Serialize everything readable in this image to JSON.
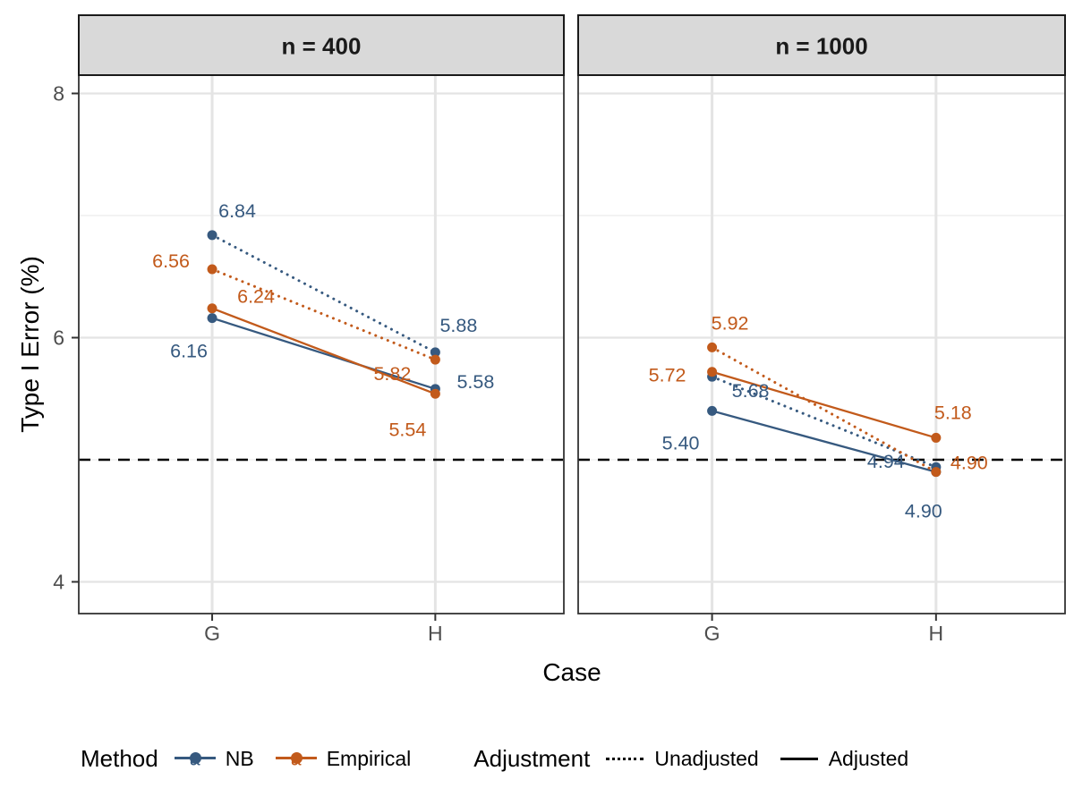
{
  "chart_data": {
    "type": "line",
    "title": "",
    "xlabel": "Case",
    "ylabel": "Type I Error (%)",
    "categories": [
      "G",
      "H"
    ],
    "yticks": [
      4,
      6,
      8
    ],
    "yminor_gridlines": [
      5,
      7
    ],
    "ylim": [
      3.74,
      8.15
    ],
    "reference_line_y": 5,
    "grid": true,
    "legend_position": "bottom",
    "facets": [
      {
        "title": "n = 400",
        "series": [
          {
            "method": "NB",
            "adjustment": "Unadjusted",
            "values": [
              6.84,
              5.88
            ],
            "label_offsets": [
              [
                28,
                -27
              ],
              [
                26,
                -30
              ]
            ]
          },
          {
            "method": "NB",
            "adjustment": "Adjusted",
            "values": [
              6.16,
              5.58
            ],
            "label_offsets": [
              [
                -26,
                37
              ],
              [
                45,
                -8
              ]
            ]
          },
          {
            "method": "Empirical",
            "adjustment": "Unadjusted",
            "values": [
              6.56,
              5.82
            ],
            "label_offsets": [
              [
                -46,
                -9
              ],
              [
                -48,
                16
              ]
            ]
          },
          {
            "method": "Empirical",
            "adjustment": "Adjusted",
            "values": [
              6.24,
              5.54
            ],
            "label_offsets": [
              [
                49,
                -13
              ],
              [
                -31,
                40
              ]
            ]
          }
        ]
      },
      {
        "title": "n = 1000",
        "series": [
          {
            "method": "NB",
            "adjustment": "Unadjusted",
            "values": [
              5.68,
              4.94
            ],
            "label_offsets": [
              [
                43,
                16
              ],
              [
                -56,
                -6
              ]
            ]
          },
          {
            "method": "NB",
            "adjustment": "Adjusted",
            "values": [
              5.4,
              4.9
            ],
            "label_offsets": [
              [
                -35,
                36
              ],
              [
                -14,
                44
              ]
            ]
          },
          {
            "method": "Empirical",
            "adjustment": "Unadjusted",
            "values": [
              5.92,
              4.9
            ],
            "label_offsets": [
              [
                20,
                -27
              ],
              [
                37,
                -10
              ]
            ]
          },
          {
            "method": "Empirical",
            "adjustment": "Adjusted",
            "values": [
              5.72,
              5.18
            ],
            "label_offsets": [
              [
                -50,
                4
              ],
              [
                19,
                -28
              ]
            ]
          }
        ]
      }
    ],
    "colors": {
      "NB": "#36597F",
      "Empirical": "#C25A1B",
      "strip_bg": "#D9D9D9",
      "strip_border": "#1A1A1A",
      "panel_border": "#333333",
      "grid_major": "#E4E4E4",
      "grid_minor": "#F0F0F0",
      "tick_text": "#4D4D4D",
      "reference_line": "#000000"
    },
    "linetypes": {
      "Unadjusted": "dotted",
      "Adjusted": "solid"
    }
  },
  "legend": {
    "method": {
      "title": "Method",
      "items": [
        {
          "label": "NB",
          "color": "#36597F"
        },
        {
          "label": "Empirical",
          "color": "#C25A1B"
        }
      ]
    },
    "adjustment": {
      "title": "Adjustment",
      "items": [
        {
          "label": "Unadjusted",
          "style": "dotted"
        },
        {
          "label": "Adjusted",
          "style": "solid"
        }
      ]
    }
  }
}
